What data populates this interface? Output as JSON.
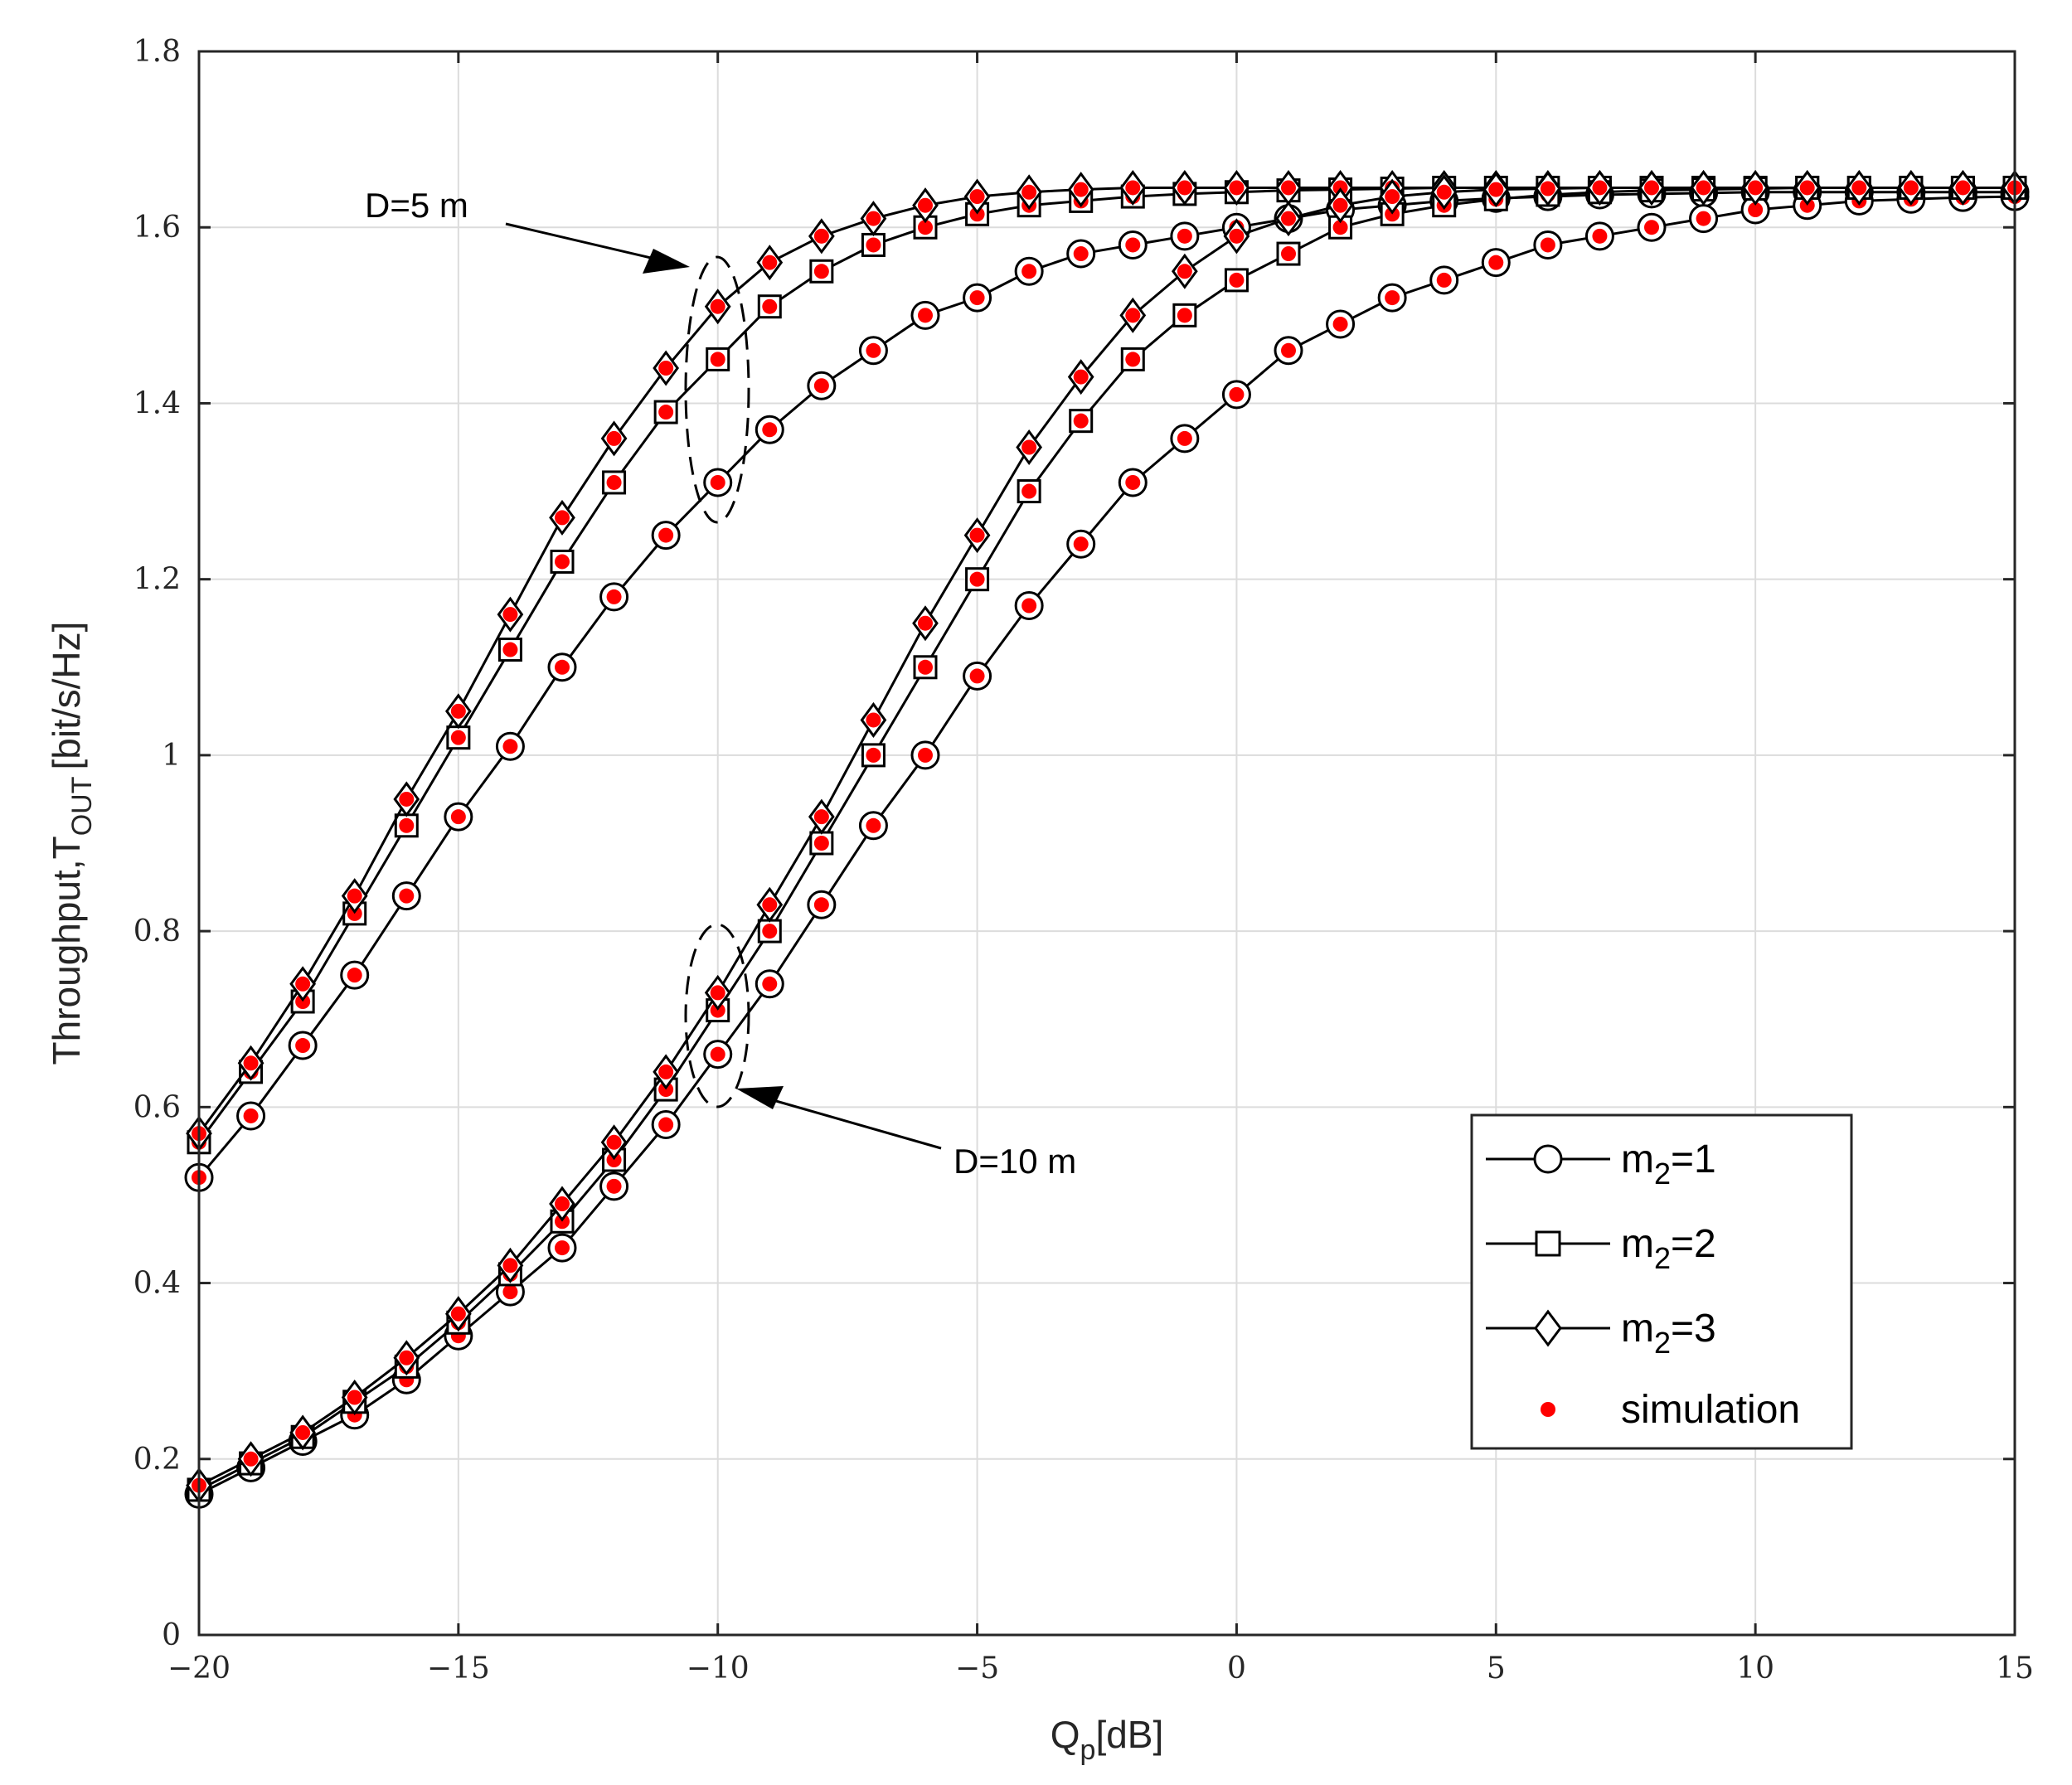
{
  "chart_data": {
    "type": "line",
    "title": "",
    "xlabel": "Q",
    "xlabel_sub": "p",
    "xlabel_suffix": "[dB]",
    "ylabel": "Throughput,T",
    "ylabel_sub": "OUT",
    "ylabel_suffix": "[bit/s/Hz]",
    "xlim": [
      -20,
      15
    ],
    "ylim": [
      0,
      1.8
    ],
    "xticks": [
      -20,
      -15,
      -10,
      -5,
      0,
      5,
      10,
      15
    ],
    "xtick_labels": [
      "−20",
      "−15",
      "−10",
      "−5",
      "0",
      "5",
      "10",
      "15"
    ],
    "yticks": [
      0,
      0.2,
      0.4,
      0.6,
      0.8,
      1,
      1.2,
      1.4,
      1.6,
      1.8
    ],
    "ytick_labels": [
      "0",
      "0.2",
      "0.4",
      "0.6",
      "0.8",
      "1",
      "1.2",
      "1.4",
      "1.6",
      "1.8"
    ],
    "grid": true,
    "legend_position": "bottom-right",
    "x": [
      -20,
      -19,
      -18,
      -17,
      -16,
      -15,
      -14,
      -13,
      -12,
      -11,
      -10,
      -9,
      -8,
      -7,
      -6,
      -5,
      -4,
      -3,
      -2,
      -1,
      0,
      1,
      2,
      3,
      4,
      5,
      6,
      7,
      8,
      9,
      10,
      11,
      12,
      13,
      14,
      15
    ],
    "series": [
      {
        "name": "m2=1",
        "marker": "circle",
        "group": "D=5 m",
        "values": [
          0.52,
          0.59,
          0.67,
          0.75,
          0.84,
          0.93,
          1.01,
          1.1,
          1.18,
          1.25,
          1.31,
          1.37,
          1.42,
          1.46,
          1.5,
          1.52,
          1.55,
          1.57,
          1.58,
          1.59,
          1.6,
          1.61,
          1.62,
          1.625,
          1.63,
          1.633,
          1.635,
          1.637,
          1.638,
          1.639,
          1.64,
          1.64,
          1.64,
          1.64,
          1.64,
          1.64
        ]
      },
      {
        "name": "m2=2",
        "marker": "square",
        "group": "D=5 m",
        "values": [
          0.56,
          0.64,
          0.72,
          0.82,
          0.92,
          1.02,
          1.12,
          1.22,
          1.31,
          1.39,
          1.45,
          1.51,
          1.55,
          1.58,
          1.6,
          1.615,
          1.625,
          1.63,
          1.635,
          1.638,
          1.64,
          1.642,
          1.643,
          1.644,
          1.645,
          1.645,
          1.645,
          1.645,
          1.645,
          1.645,
          1.645,
          1.645,
          1.645,
          1.645,
          1.645,
          1.645
        ]
      },
      {
        "name": "m2=3",
        "marker": "diamond",
        "group": "D=5 m",
        "values": [
          0.57,
          0.65,
          0.74,
          0.84,
          0.95,
          1.05,
          1.16,
          1.27,
          1.36,
          1.44,
          1.51,
          1.56,
          1.59,
          1.61,
          1.625,
          1.635,
          1.64,
          1.643,
          1.645,
          1.645,
          1.645,
          1.645,
          1.645,
          1.645,
          1.645,
          1.645,
          1.645,
          1.645,
          1.645,
          1.645,
          1.645,
          1.645,
          1.645,
          1.645,
          1.645,
          1.645
        ]
      },
      {
        "name": "m2=1",
        "marker": "circle",
        "group": "D=10 m",
        "values": [
          0.16,
          0.19,
          0.22,
          0.25,
          0.29,
          0.34,
          0.39,
          0.44,
          0.51,
          0.58,
          0.66,
          0.74,
          0.83,
          0.92,
          1.0,
          1.09,
          1.17,
          1.24,
          1.31,
          1.36,
          1.41,
          1.46,
          1.49,
          1.52,
          1.54,
          1.56,
          1.58,
          1.59,
          1.6,
          1.61,
          1.62,
          1.625,
          1.63,
          1.632,
          1.634,
          1.635
        ]
      },
      {
        "name": "m2=2",
        "marker": "square",
        "group": "D=10 m",
        "values": [
          0.165,
          0.195,
          0.225,
          0.265,
          0.305,
          0.355,
          0.41,
          0.47,
          0.54,
          0.62,
          0.71,
          0.8,
          0.9,
          1.0,
          1.1,
          1.2,
          1.3,
          1.38,
          1.45,
          1.5,
          1.54,
          1.57,
          1.6,
          1.615,
          1.625,
          1.632,
          1.637,
          1.64,
          1.642,
          1.643,
          1.644,
          1.645,
          1.645,
          1.645,
          1.645,
          1.645
        ]
      },
      {
        "name": "m2=3",
        "marker": "diamond",
        "group": "D=10 m",
        "values": [
          0.17,
          0.2,
          0.23,
          0.27,
          0.315,
          0.365,
          0.42,
          0.49,
          0.56,
          0.64,
          0.73,
          0.83,
          0.93,
          1.04,
          1.15,
          1.25,
          1.35,
          1.43,
          1.5,
          1.55,
          1.59,
          1.61,
          1.625,
          1.635,
          1.64,
          1.643,
          1.644,
          1.645,
          1.645,
          1.645,
          1.645,
          1.645,
          1.645,
          1.645,
          1.645,
          1.645
        ]
      }
    ],
    "annotations": [
      {
        "text": "D=5 m"
      },
      {
        "text": "D=10 m"
      }
    ],
    "legend": [
      {
        "label": "m",
        "sub": "2",
        "suffix": "=1",
        "marker": "circle"
      },
      {
        "label": "m",
        "sub": "2",
        "suffix": "=2",
        "marker": "square"
      },
      {
        "label": "m",
        "sub": "2",
        "suffix": "=3",
        "marker": "diamond"
      },
      {
        "label": "simulation",
        "sub": "",
        "suffix": "",
        "marker": "dot"
      }
    ]
  },
  "colors": {
    "line": "#000000",
    "simulation": "#ff0000",
    "grid": "#dcdcdc",
    "background": "#ffffff"
  }
}
